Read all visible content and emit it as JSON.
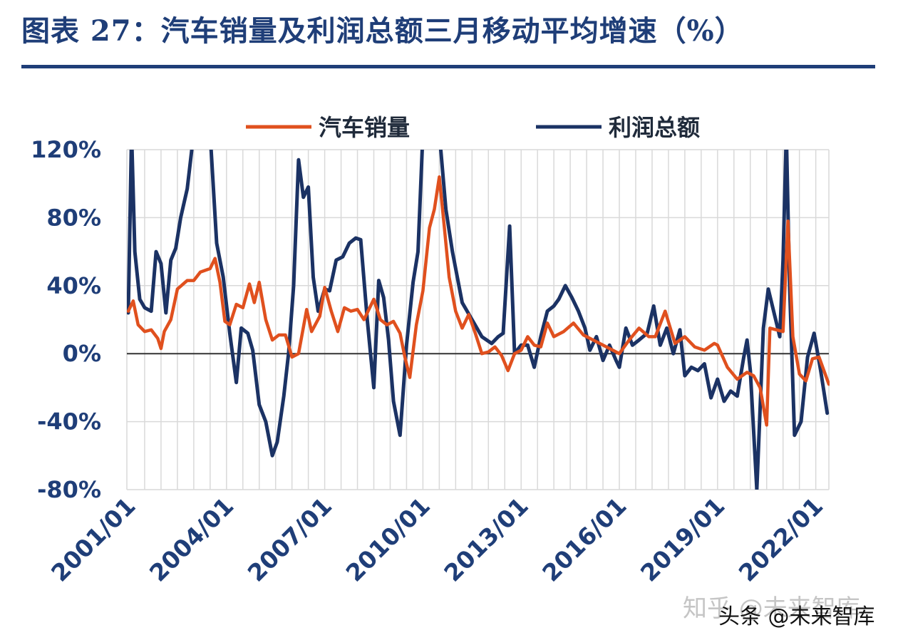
{
  "title": "图表 27：汽车销量及利润总额三月移动平均增速（%）",
  "watermarks": [
    "知乎 @未来智库",
    "头条 @未来智库"
  ],
  "colors": {
    "sales": "#e0501e",
    "profit": "#1b3264",
    "title": "#1f3e78",
    "grid": "#d9d9d9"
  },
  "chart_data": {
    "type": "line",
    "legend_placement": "top",
    "grid": true,
    "ylim": [
      -0.8,
      1.2
    ],
    "yticks": [
      1.2,
      0.8,
      0.4,
      0.0,
      -0.4,
      -0.8
    ],
    "ytick_labels": [
      "120%",
      "80%",
      "40%",
      "0%",
      "-40%",
      "-80%"
    ],
    "xtick_labels": [
      "2001/01",
      "2004/01",
      "2007/01",
      "2010/01",
      "2013/01",
      "2016/01",
      "2019/01",
      "2022/01"
    ],
    "xtick_dates": [
      2001.0,
      2004.0,
      2007.0,
      2010.0,
      2013.0,
      2016.0,
      2019.0,
      2022.0
    ],
    "xlim": [
      2001.0,
      2022.4
    ],
    "series": [
      {
        "name": "汽车销量",
        "points": [
          [
            2001.0,
            0.25
          ],
          [
            2001.15,
            0.31
          ],
          [
            2001.3,
            0.17
          ],
          [
            2001.5,
            0.13
          ],
          [
            2001.7,
            0.14
          ],
          [
            2001.9,
            0.09
          ],
          [
            2002.0,
            0.03
          ],
          [
            2002.1,
            0.13
          ],
          [
            2002.3,
            0.2
          ],
          [
            2002.5,
            0.38
          ],
          [
            2002.8,
            0.43
          ],
          [
            2003.0,
            0.43
          ],
          [
            2003.2,
            0.48
          ],
          [
            2003.5,
            0.5
          ],
          [
            2003.65,
            0.56
          ],
          [
            2003.8,
            0.42
          ],
          [
            2003.95,
            0.19
          ],
          [
            2004.1,
            0.17
          ],
          [
            2004.3,
            0.29
          ],
          [
            2004.5,
            0.27
          ],
          [
            2004.7,
            0.41
          ],
          [
            2004.85,
            0.3
          ],
          [
            2005.0,
            0.42
          ],
          [
            2005.2,
            0.2
          ],
          [
            2005.4,
            0.08
          ],
          [
            2005.6,
            0.11
          ],
          [
            2005.8,
            0.11
          ],
          [
            2006.0,
            -0.02
          ],
          [
            2006.2,
            0.0
          ],
          [
            2006.45,
            0.26
          ],
          [
            2006.6,
            0.13
          ],
          [
            2006.85,
            0.22
          ],
          [
            2007.0,
            0.39
          ],
          [
            2007.2,
            0.25
          ],
          [
            2007.4,
            0.13
          ],
          [
            2007.6,
            0.27
          ],
          [
            2007.8,
            0.25
          ],
          [
            2008.0,
            0.26
          ],
          [
            2008.2,
            0.2
          ],
          [
            2008.5,
            0.32
          ],
          [
            2008.7,
            0.2
          ],
          [
            2008.9,
            0.17
          ],
          [
            2009.1,
            0.19
          ],
          [
            2009.3,
            0.12
          ],
          [
            2009.45,
            -0.02
          ],
          [
            2009.6,
            -0.14
          ],
          [
            2009.8,
            0.17
          ],
          [
            2010.0,
            0.37
          ],
          [
            2010.2,
            0.74
          ],
          [
            2010.35,
            0.85
          ],
          [
            2010.5,
            1.04
          ],
          [
            2010.65,
            0.75
          ],
          [
            2010.8,
            0.45
          ],
          [
            2011.0,
            0.25
          ],
          [
            2011.2,
            0.15
          ],
          [
            2011.4,
            0.23
          ],
          [
            2011.6,
            0.12
          ],
          [
            2011.8,
            0.0
          ],
          [
            2012.0,
            0.01
          ],
          [
            2012.2,
            0.04
          ],
          [
            2012.4,
            -0.01
          ],
          [
            2012.6,
            -0.1
          ],
          [
            2012.8,
            0.0
          ],
          [
            2013.0,
            0.02
          ],
          [
            2013.2,
            0.1
          ],
          [
            2013.4,
            0.05
          ],
          [
            2013.6,
            0.04
          ],
          [
            2013.8,
            0.18
          ],
          [
            2014.0,
            0.1
          ],
          [
            2014.3,
            0.13
          ],
          [
            2014.6,
            0.18
          ],
          [
            2014.9,
            0.11
          ],
          [
            2015.2,
            0.08
          ],
          [
            2015.5,
            0.05
          ],
          [
            2015.8,
            0.02
          ],
          [
            2016.0,
            0.0
          ],
          [
            2016.3,
            0.08
          ],
          [
            2016.6,
            0.15
          ],
          [
            2016.9,
            0.1
          ],
          [
            2017.1,
            0.1
          ],
          [
            2017.4,
            0.25
          ],
          [
            2017.7,
            0.06
          ],
          [
            2018.0,
            0.1
          ],
          [
            2018.3,
            0.04
          ],
          [
            2018.6,
            0.02
          ],
          [
            2018.9,
            0.06
          ],
          [
            2019.0,
            0.05
          ],
          [
            2019.3,
            -0.08
          ],
          [
            2019.6,
            -0.15
          ],
          [
            2019.9,
            -0.11
          ],
          [
            2020.1,
            -0.13
          ],
          [
            2020.3,
            -0.2
          ],
          [
            2020.5,
            -0.42
          ],
          [
            2020.6,
            0.15
          ],
          [
            2020.8,
            0.14
          ],
          [
            2021.0,
            0.13
          ],
          [
            2021.15,
            0.78
          ],
          [
            2021.3,
            0.1
          ],
          [
            2021.5,
            -0.12
          ],
          [
            2021.7,
            -0.16
          ],
          [
            2021.9,
            -0.03
          ],
          [
            2022.1,
            -0.02
          ],
          [
            2022.4,
            -0.18
          ]
        ]
      },
      {
        "name": "利润总额",
        "points": [
          [
            2001.0,
            0.24
          ],
          [
            2001.1,
            1.3
          ],
          [
            2001.2,
            0.6
          ],
          [
            2001.35,
            0.32
          ],
          [
            2001.5,
            0.27
          ],
          [
            2001.7,
            0.25
          ],
          [
            2001.85,
            0.6
          ],
          [
            2002.0,
            0.53
          ],
          [
            2002.15,
            0.24
          ],
          [
            2002.3,
            0.55
          ],
          [
            2002.45,
            0.62
          ],
          [
            2002.6,
            0.8
          ],
          [
            2002.8,
            0.97
          ],
          [
            2003.0,
            1.3
          ],
          [
            2003.3,
            1.3
          ],
          [
            2003.5,
            1.3
          ],
          [
            2003.7,
            0.65
          ],
          [
            2003.9,
            0.45
          ],
          [
            2004.1,
            0.12
          ],
          [
            2004.3,
            -0.17
          ],
          [
            2004.45,
            0.15
          ],
          [
            2004.65,
            0.12
          ],
          [
            2004.8,
            0.02
          ],
          [
            2005.0,
            -0.3
          ],
          [
            2005.2,
            -0.4
          ],
          [
            2005.4,
            -0.6
          ],
          [
            2005.55,
            -0.52
          ],
          [
            2005.75,
            -0.25
          ],
          [
            2005.9,
            0.01
          ],
          [
            2006.05,
            0.4
          ],
          [
            2006.2,
            1.14
          ],
          [
            2006.35,
            0.92
          ],
          [
            2006.5,
            0.98
          ],
          [
            2006.65,
            0.45
          ],
          [
            2006.8,
            0.25
          ],
          [
            2007.0,
            0.38
          ],
          [
            2007.15,
            0.37
          ],
          [
            2007.35,
            0.55
          ],
          [
            2007.55,
            0.57
          ],
          [
            2007.75,
            0.65
          ],
          [
            2007.95,
            0.68
          ],
          [
            2008.1,
            0.67
          ],
          [
            2008.3,
            0.2
          ],
          [
            2008.5,
            -0.2
          ],
          [
            2008.65,
            0.43
          ],
          [
            2008.8,
            0.33
          ],
          [
            2008.95,
            0.08
          ],
          [
            2009.1,
            -0.28
          ],
          [
            2009.3,
            -0.48
          ],
          [
            2009.5,
            0.05
          ],
          [
            2009.7,
            0.42
          ],
          [
            2009.85,
            0.6
          ],
          [
            2010.0,
            1.3
          ],
          [
            2010.3,
            1.3
          ],
          [
            2010.5,
            1.3
          ],
          [
            2010.7,
            0.85
          ],
          [
            2010.9,
            0.6
          ],
          [
            2011.2,
            0.3
          ],
          [
            2011.5,
            0.2
          ],
          [
            2011.8,
            0.1
          ],
          [
            2012.1,
            0.06
          ],
          [
            2012.3,
            0.1
          ],
          [
            2012.45,
            0.12
          ],
          [
            2012.65,
            0.75
          ],
          [
            2012.8,
            0.0
          ],
          [
            2013.0,
            0.05
          ],
          [
            2013.2,
            0.05
          ],
          [
            2013.4,
            -0.08
          ],
          [
            2013.6,
            0.1
          ],
          [
            2013.8,
            0.25
          ],
          [
            2014.0,
            0.28
          ],
          [
            2014.15,
            0.32
          ],
          [
            2014.35,
            0.4
          ],
          [
            2014.55,
            0.33
          ],
          [
            2014.75,
            0.25
          ],
          [
            2014.95,
            0.15
          ],
          [
            2015.1,
            0.02
          ],
          [
            2015.3,
            0.1
          ],
          [
            2015.5,
            -0.04
          ],
          [
            2015.7,
            0.05
          ],
          [
            2015.9,
            -0.04
          ],
          [
            2016.0,
            -0.08
          ],
          [
            2016.2,
            0.15
          ],
          [
            2016.4,
            0.05
          ],
          [
            2016.6,
            0.08
          ],
          [
            2016.85,
            0.12
          ],
          [
            2017.05,
            0.28
          ],
          [
            2017.25,
            0.05
          ],
          [
            2017.45,
            0.15
          ],
          [
            2017.65,
            0.0
          ],
          [
            2017.85,
            0.14
          ],
          [
            2018.0,
            -0.13
          ],
          [
            2018.2,
            -0.08
          ],
          [
            2018.4,
            -0.1
          ],
          [
            2018.6,
            -0.06
          ],
          [
            2018.8,
            -0.26
          ],
          [
            2019.0,
            -0.15
          ],
          [
            2019.2,
            -0.28
          ],
          [
            2019.4,
            -0.22
          ],
          [
            2019.6,
            -0.25
          ],
          [
            2019.8,
            -0.02
          ],
          [
            2019.9,
            0.08
          ],
          [
            2020.0,
            -0.1
          ],
          [
            2020.2,
            -0.8
          ],
          [
            2020.4,
            0.15
          ],
          [
            2020.55,
            0.38
          ],
          [
            2020.75,
            0.22
          ],
          [
            2020.9,
            0.1
          ],
          [
            2021.0,
            0.55
          ],
          [
            2021.1,
            1.3
          ],
          [
            2021.2,
            0.4
          ],
          [
            2021.35,
            -0.48
          ],
          [
            2021.55,
            -0.4
          ],
          [
            2021.75,
            -0.02
          ],
          [
            2021.95,
            0.12
          ],
          [
            2022.15,
            -0.1
          ],
          [
            2022.35,
            -0.35
          ]
        ]
      }
    ]
  }
}
